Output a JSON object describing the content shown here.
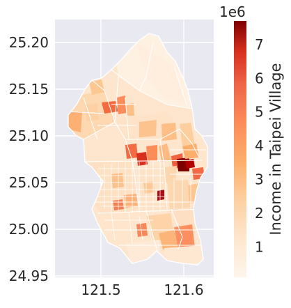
{
  "map": {
    "plot_background": "#e9e9f1",
    "grid_color": "#ffffff",
    "boundary_color": "#ffffff",
    "region_color_low": "#fff5eb",
    "region_color_mid": "#fdae6b",
    "region_color_high": "#7f0000",
    "x_ticks": [
      "121.5",
      "121.6"
    ],
    "y_ticks": [
      "25.20",
      "25.15",
      "25.10",
      "25.05",
      "25.00",
      "24.95"
    ],
    "colorbar": {
      "label": "Income in Taipei Village",
      "ticks": [
        "1",
        "2",
        "3",
        "4",
        "5",
        "6",
        "7"
      ],
      "offset_text": "1e6",
      "min": 0.1,
      "max": 7.7
    }
  }
}
